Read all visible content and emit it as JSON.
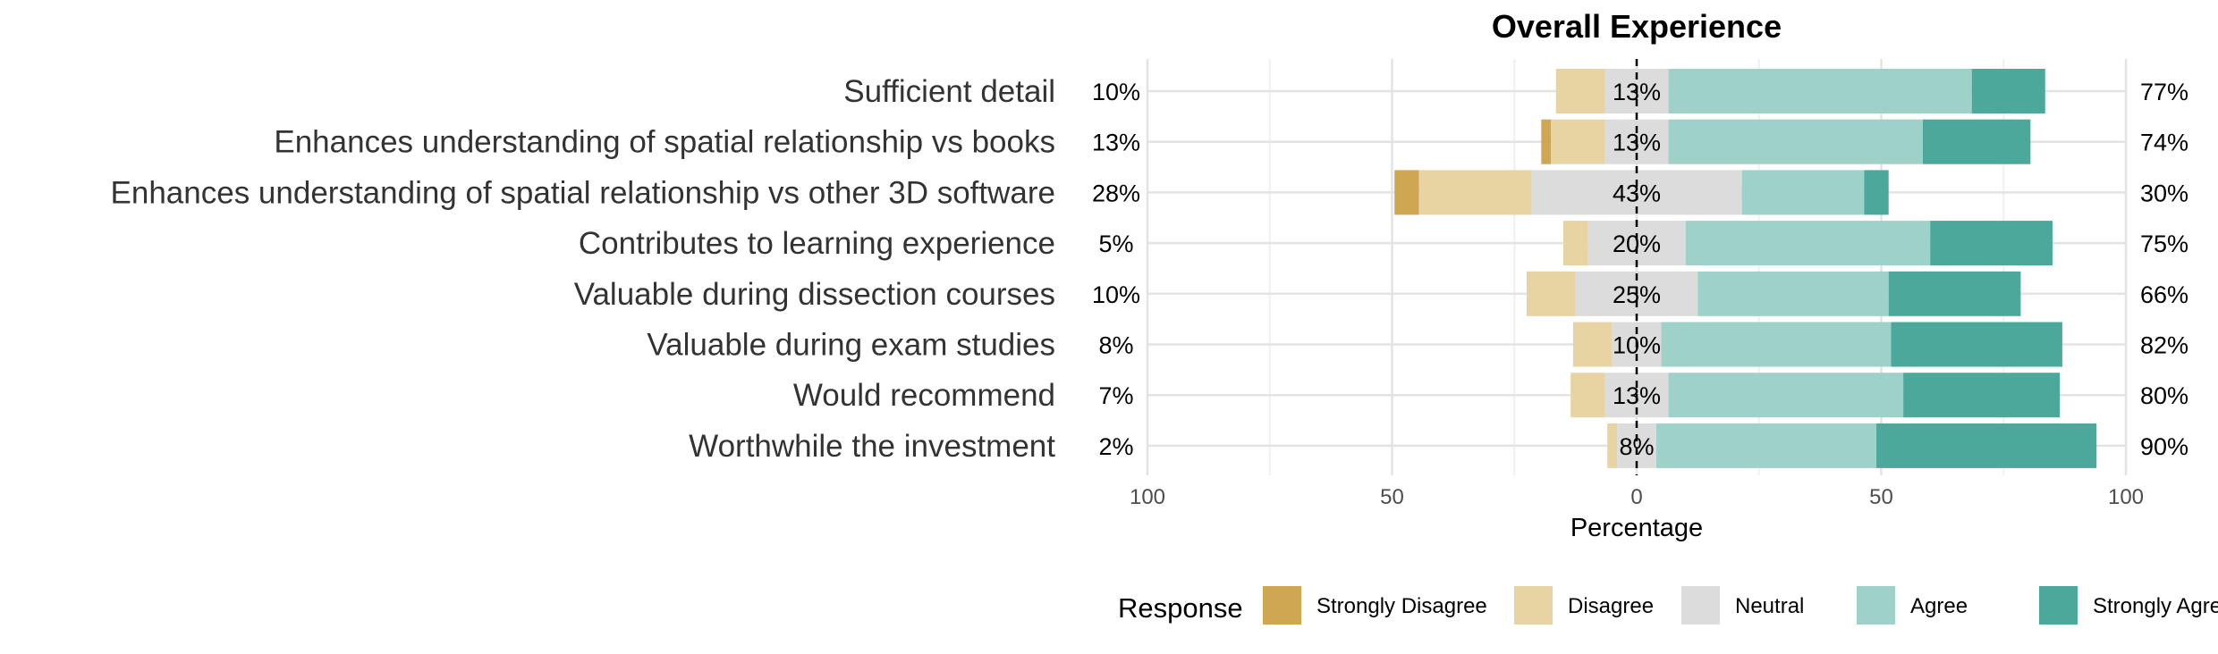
{
  "chart_data": {
    "type": "bar",
    "title": "Overall Experience",
    "xlabel": "Percentage",
    "xlim": [
      -100,
      100
    ],
    "xticks": [
      -100,
      -50,
      0,
      50,
      100
    ],
    "xtick_labels": [
      "100",
      "50",
      "0",
      "50",
      "100"
    ],
    "legend": {
      "title": "Response",
      "placement": "bottom",
      "entries": [
        {
          "name": "Strongly Disagree",
          "color": "#cfa652"
        },
        {
          "name": "Disagree",
          "color": "#e8d3a2"
        },
        {
          "name": "Neutral",
          "color": "#dcdcdc"
        },
        {
          "name": "Agree",
          "color": "#9ed1c8"
        },
        {
          "name": "Strongly Agree",
          "color": "#4ba89b"
        }
      ]
    },
    "categories": [
      "Sufficient detail",
      "Enhances understanding of spatial relationship vs books",
      "Enhances understanding of spatial relationship vs other 3D software",
      "Contributes to learning experience",
      "Valuable during dissection courses",
      "Valuable during exam studies",
      "Would recommend",
      "Worthwhile the investment"
    ],
    "series": [
      {
        "name": "Strongly Disagree",
        "values": [
          0,
          2,
          5,
          0,
          0,
          0,
          0,
          0
        ]
      },
      {
        "name": "Disagree",
        "values": [
          10,
          11,
          23,
          5,
          10,
          8,
          7,
          2
        ]
      },
      {
        "name": "Neutral",
        "values": [
          13,
          13,
          43,
          20,
          25,
          10,
          13,
          8
        ]
      },
      {
        "name": "Agree",
        "values": [
          62,
          52,
          25,
          50,
          39,
          47,
          48,
          45
        ]
      },
      {
        "name": "Strongly Agree",
        "values": [
          15,
          22,
          5,
          25,
          27,
          35,
          32,
          45
        ]
      }
    ],
    "left_labels": [
      "10%",
      "13%",
      "28%",
      "5%",
      "10%",
      "8%",
      "7%",
      "2%"
    ],
    "center_labels": [
      "13%",
      "13%",
      "43%",
      "20%",
      "25%",
      "10%",
      "13%",
      "8%"
    ],
    "right_labels": [
      "77%",
      "74%",
      "30%",
      "75%",
      "66%",
      "82%",
      "80%",
      "90%"
    ],
    "grid": true
  }
}
